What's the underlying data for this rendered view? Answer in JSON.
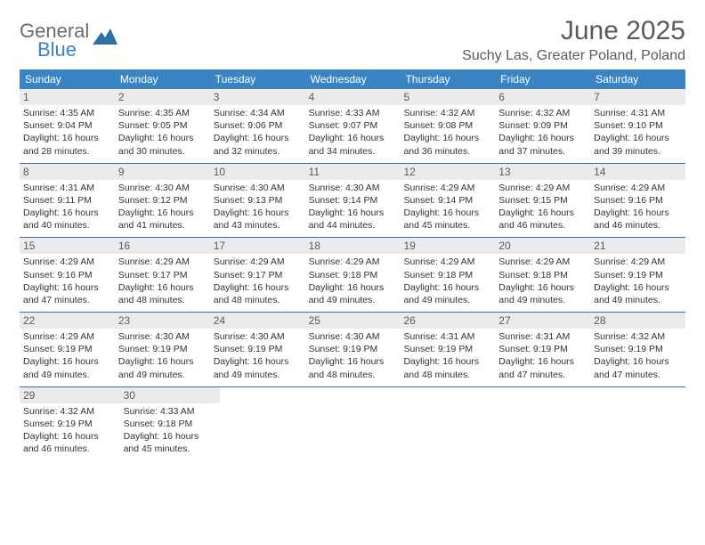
{
  "brand": {
    "name_top": "General",
    "name_bottom": "Blue",
    "colors": {
      "gray": "#6b6b6b",
      "blue": "#3b82c4"
    }
  },
  "title": "June 2025",
  "location": "Suchy Las, Greater Poland, Poland",
  "styling": {
    "header_bg": "#3b84c4",
    "header_text": "#ffffff",
    "daynum_bg": "#ebebeb",
    "daynum_text": "#5a5a5a",
    "week_border": "#3b6fa0",
    "body_text": "#333333",
    "page_bg": "#ffffff",
    "title_fontsize": 30,
    "subtitle_fontsize": 16,
    "weekday_fontsize": 12,
    "daynum_fontsize": 12,
    "dayline_fontsize": 10.5
  },
  "weekdays": [
    "Sunday",
    "Monday",
    "Tuesday",
    "Wednesday",
    "Thursday",
    "Friday",
    "Saturday"
  ],
  "weeks": [
    [
      {
        "num": "1",
        "sunrise": "Sunrise: 4:35 AM",
        "sunset": "Sunset: 9:04 PM",
        "day1": "Daylight: 16 hours",
        "day2": "and 28 minutes."
      },
      {
        "num": "2",
        "sunrise": "Sunrise: 4:35 AM",
        "sunset": "Sunset: 9:05 PM",
        "day1": "Daylight: 16 hours",
        "day2": "and 30 minutes."
      },
      {
        "num": "3",
        "sunrise": "Sunrise: 4:34 AM",
        "sunset": "Sunset: 9:06 PM",
        "day1": "Daylight: 16 hours",
        "day2": "and 32 minutes."
      },
      {
        "num": "4",
        "sunrise": "Sunrise: 4:33 AM",
        "sunset": "Sunset: 9:07 PM",
        "day1": "Daylight: 16 hours",
        "day2": "and 34 minutes."
      },
      {
        "num": "5",
        "sunrise": "Sunrise: 4:32 AM",
        "sunset": "Sunset: 9:08 PM",
        "day1": "Daylight: 16 hours",
        "day2": "and 36 minutes."
      },
      {
        "num": "6",
        "sunrise": "Sunrise: 4:32 AM",
        "sunset": "Sunset: 9:09 PM",
        "day1": "Daylight: 16 hours",
        "day2": "and 37 minutes."
      },
      {
        "num": "7",
        "sunrise": "Sunrise: 4:31 AM",
        "sunset": "Sunset: 9:10 PM",
        "day1": "Daylight: 16 hours",
        "day2": "and 39 minutes."
      }
    ],
    [
      {
        "num": "8",
        "sunrise": "Sunrise: 4:31 AM",
        "sunset": "Sunset: 9:11 PM",
        "day1": "Daylight: 16 hours",
        "day2": "and 40 minutes."
      },
      {
        "num": "9",
        "sunrise": "Sunrise: 4:30 AM",
        "sunset": "Sunset: 9:12 PM",
        "day1": "Daylight: 16 hours",
        "day2": "and 41 minutes."
      },
      {
        "num": "10",
        "sunrise": "Sunrise: 4:30 AM",
        "sunset": "Sunset: 9:13 PM",
        "day1": "Daylight: 16 hours",
        "day2": "and 43 minutes."
      },
      {
        "num": "11",
        "sunrise": "Sunrise: 4:30 AM",
        "sunset": "Sunset: 9:14 PM",
        "day1": "Daylight: 16 hours",
        "day2": "and 44 minutes."
      },
      {
        "num": "12",
        "sunrise": "Sunrise: 4:29 AM",
        "sunset": "Sunset: 9:14 PM",
        "day1": "Daylight: 16 hours",
        "day2": "and 45 minutes."
      },
      {
        "num": "13",
        "sunrise": "Sunrise: 4:29 AM",
        "sunset": "Sunset: 9:15 PM",
        "day1": "Daylight: 16 hours",
        "day2": "and 46 minutes."
      },
      {
        "num": "14",
        "sunrise": "Sunrise: 4:29 AM",
        "sunset": "Sunset: 9:16 PM",
        "day1": "Daylight: 16 hours",
        "day2": "and 46 minutes."
      }
    ],
    [
      {
        "num": "15",
        "sunrise": "Sunrise: 4:29 AM",
        "sunset": "Sunset: 9:16 PM",
        "day1": "Daylight: 16 hours",
        "day2": "and 47 minutes."
      },
      {
        "num": "16",
        "sunrise": "Sunrise: 4:29 AM",
        "sunset": "Sunset: 9:17 PM",
        "day1": "Daylight: 16 hours",
        "day2": "and 48 minutes."
      },
      {
        "num": "17",
        "sunrise": "Sunrise: 4:29 AM",
        "sunset": "Sunset: 9:17 PM",
        "day1": "Daylight: 16 hours",
        "day2": "and 48 minutes."
      },
      {
        "num": "18",
        "sunrise": "Sunrise: 4:29 AM",
        "sunset": "Sunset: 9:18 PM",
        "day1": "Daylight: 16 hours",
        "day2": "and 49 minutes."
      },
      {
        "num": "19",
        "sunrise": "Sunrise: 4:29 AM",
        "sunset": "Sunset: 9:18 PM",
        "day1": "Daylight: 16 hours",
        "day2": "and 49 minutes."
      },
      {
        "num": "20",
        "sunrise": "Sunrise: 4:29 AM",
        "sunset": "Sunset: 9:18 PM",
        "day1": "Daylight: 16 hours",
        "day2": "and 49 minutes."
      },
      {
        "num": "21",
        "sunrise": "Sunrise: 4:29 AM",
        "sunset": "Sunset: 9:19 PM",
        "day1": "Daylight: 16 hours",
        "day2": "and 49 minutes."
      }
    ],
    [
      {
        "num": "22",
        "sunrise": "Sunrise: 4:29 AM",
        "sunset": "Sunset: 9:19 PM",
        "day1": "Daylight: 16 hours",
        "day2": "and 49 minutes."
      },
      {
        "num": "23",
        "sunrise": "Sunrise: 4:30 AM",
        "sunset": "Sunset: 9:19 PM",
        "day1": "Daylight: 16 hours",
        "day2": "and 49 minutes."
      },
      {
        "num": "24",
        "sunrise": "Sunrise: 4:30 AM",
        "sunset": "Sunset: 9:19 PM",
        "day1": "Daylight: 16 hours",
        "day2": "and 49 minutes."
      },
      {
        "num": "25",
        "sunrise": "Sunrise: 4:30 AM",
        "sunset": "Sunset: 9:19 PM",
        "day1": "Daylight: 16 hours",
        "day2": "and 48 minutes."
      },
      {
        "num": "26",
        "sunrise": "Sunrise: 4:31 AM",
        "sunset": "Sunset: 9:19 PM",
        "day1": "Daylight: 16 hours",
        "day2": "and 48 minutes."
      },
      {
        "num": "27",
        "sunrise": "Sunrise: 4:31 AM",
        "sunset": "Sunset: 9:19 PM",
        "day1": "Daylight: 16 hours",
        "day2": "and 47 minutes."
      },
      {
        "num": "28",
        "sunrise": "Sunrise: 4:32 AM",
        "sunset": "Sunset: 9:19 PM",
        "day1": "Daylight: 16 hours",
        "day2": "and 47 minutes."
      }
    ],
    [
      {
        "num": "29",
        "sunrise": "Sunrise: 4:32 AM",
        "sunset": "Sunset: 9:19 PM",
        "day1": "Daylight: 16 hours",
        "day2": "and 46 minutes."
      },
      {
        "num": "30",
        "sunrise": "Sunrise: 4:33 AM",
        "sunset": "Sunset: 9:18 PM",
        "day1": "Daylight: 16 hours",
        "day2": "and 45 minutes."
      },
      null,
      null,
      null,
      null,
      null
    ]
  ]
}
